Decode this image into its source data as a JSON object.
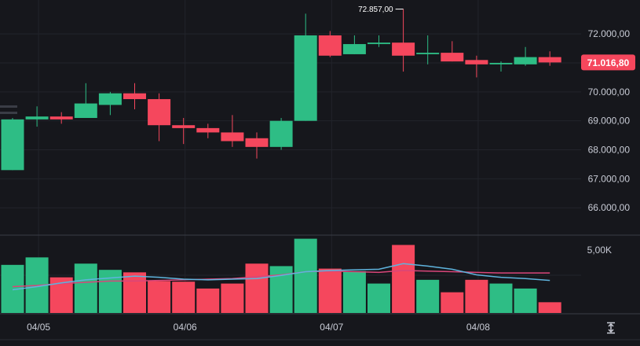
{
  "chart_data": [
    {
      "type": "candlestick",
      "x_ticks": [
        "04/05",
        "04/06",
        "04/07",
        "04/08"
      ],
      "y_ticks": [
        "66.000,00",
        "67.000,00",
        "68.000,00",
        "69.000,00",
        "70.000,00",
        "71.000,00",
        "72.000,00"
      ],
      "ylim": [
        65300,
        72900
      ],
      "high_label": "72.857,00",
      "last_price_label": "71.016,80",
      "last_price": 71016.8,
      "candles": [
        {
          "o": 67300,
          "h": 69100,
          "l": 67300,
          "c": 69050
        },
        {
          "o": 69050,
          "h": 69500,
          "l": 68800,
          "c": 69150
        },
        {
          "o": 69150,
          "h": 69300,
          "l": 68900,
          "c": 69050
        },
        {
          "o": 69100,
          "h": 70300,
          "l": 69100,
          "c": 69600
        },
        {
          "o": 69550,
          "h": 70000,
          "l": 69200,
          "c": 69950
        },
        {
          "o": 69950,
          "h": 70300,
          "l": 69400,
          "c": 69750
        },
        {
          "o": 69750,
          "h": 69950,
          "l": 68300,
          "c": 68850
        },
        {
          "o": 68850,
          "h": 69100,
          "l": 68200,
          "c": 68750
        },
        {
          "o": 68750,
          "h": 68900,
          "l": 68400,
          "c": 68600
        },
        {
          "o": 68600,
          "h": 69200,
          "l": 68100,
          "c": 68300
        },
        {
          "o": 68400,
          "h": 68600,
          "l": 67700,
          "c": 68100
        },
        {
          "o": 68100,
          "h": 69100,
          "l": 68000,
          "c": 69000
        },
        {
          "o": 69000,
          "h": 72700,
          "l": 69000,
          "c": 71950
        },
        {
          "o": 71950,
          "h": 72100,
          "l": 71200,
          "c": 71250
        },
        {
          "o": 71300,
          "h": 71950,
          "l": 71300,
          "c": 71650
        },
        {
          "o": 71650,
          "h": 71950,
          "l": 71550,
          "c": 71700
        },
        {
          "o": 71700,
          "h": 72857,
          "l": 70700,
          "c": 71250
        },
        {
          "o": 71300,
          "h": 71950,
          "l": 70950,
          "c": 71350
        },
        {
          "o": 71350,
          "h": 71750,
          "l": 71050,
          "c": 71050
        },
        {
          "o": 71100,
          "h": 71250,
          "l": 70500,
          "c": 70950
        },
        {
          "o": 70950,
          "h": 71050,
          "l": 70700,
          "c": 71000
        },
        {
          "o": 70950,
          "h": 71550,
          "l": 70900,
          "c": 71200
        },
        {
          "o": 71200,
          "h": 71400,
          "l": 70900,
          "c": 71016.8
        }
      ]
    },
    {
      "type": "bar",
      "y_ticks": [
        "5,00K"
      ],
      "ylim": [
        0,
        6000
      ],
      "volume": [
        3800,
        4400,
        2800,
        3900,
        3400,
        3200,
        2500,
        2450,
        1900,
        2300,
        3900,
        3700,
        5900,
        3500,
        3300,
        2300,
        5400,
        2600,
        1600,
        2600,
        2300,
        1900,
        800
      ],
      "moving_average": [
        1800,
        2050,
        2350,
        2600,
        2750,
        2900,
        2800,
        2650,
        2600,
        2650,
        2700,
        2950,
        3250,
        3350,
        3400,
        3450,
        3900,
        3700,
        3450,
        3000,
        2800,
        2700,
        2550
      ],
      "signal_line": [
        2050,
        2150,
        2300,
        2400,
        2500,
        2500,
        2550,
        2600,
        2650,
        2700,
        2850,
        3000,
        3250,
        3300,
        3250,
        3200,
        3350,
        3300,
        3250,
        3200,
        3150,
        3150,
        3150
      ]
    }
  ],
  "colors": {
    "up": "#2ebd85",
    "down": "#f5475d",
    "ma": "#5fb4de",
    "signal": "#d9467a",
    "grid": "#22242b",
    "divider": "#3a3d46",
    "background": "#16171c"
  },
  "ui": {
    "autoscale_icon": "expand-vertical-icon"
  }
}
